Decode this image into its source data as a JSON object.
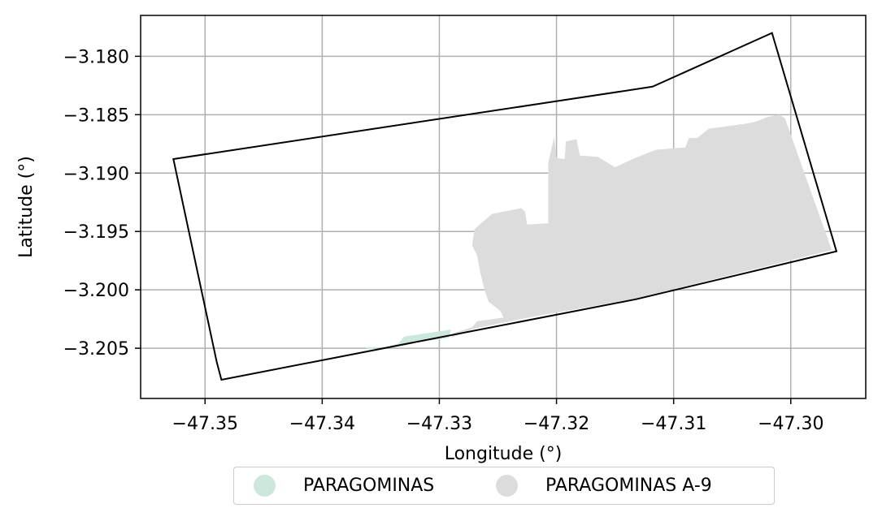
{
  "chart_data": {
    "type": "map",
    "xlabel": "Longitude (°)",
    "ylabel": "Latitude (°)",
    "xlim": [
      -47.3555,
      -47.2936
    ],
    "ylim": [
      -3.2093,
      -3.1765
    ],
    "xticks": [
      -47.35,
      -47.34,
      -47.33,
      -47.32,
      -47.31,
      -47.3
    ],
    "xtick_labels": [
      "−47.35",
      "−47.34",
      "−47.33",
      "−47.32",
      "−47.31",
      "−47.30"
    ],
    "yticks": [
      -3.18,
      -3.185,
      -3.19,
      -3.195,
      -3.2,
      -3.205
    ],
    "ytick_labels": [
      "−3.180",
      "−3.185",
      "−3.190",
      "−3.195",
      "−3.200",
      "−3.205"
    ],
    "grid": true,
    "legend_position": "bottom-center",
    "outline_color": "#000000",
    "layers": [
      {
        "name": "PARAGOMINAS",
        "color": "#cce8dc",
        "polygon": [
          [
            -47.3365,
            -3.2049
          ],
          [
            -47.3345,
            -3.2049
          ],
          [
            -47.3335,
            -3.2046
          ],
          [
            -47.333,
            -3.204
          ],
          [
            -47.329,
            -3.2034
          ],
          [
            -47.3292,
            -3.2041
          ],
          [
            -47.336,
            -3.2051
          ]
        ]
      },
      {
        "name": "PARAGOMINAS A-9",
        "color": "#dcdcdc",
        "polygon": [
          [
            -47.329,
            -3.2041
          ],
          [
            -47.327,
            -3.2033
          ],
          [
            -47.322,
            -3.2023
          ],
          [
            -47.3135,
            -3.2008
          ],
          [
            -47.2965,
            -3.1966
          ],
          [
            -47.3005,
            -3.1853
          ],
          [
            -47.301,
            -3.185
          ],
          [
            -47.302,
            -3.1852
          ],
          [
            -47.303,
            -3.1856
          ],
          [
            -47.304,
            -3.1858
          ],
          [
            -47.307,
            -3.1862
          ],
          [
            -47.308,
            -3.187
          ],
          [
            -47.3087,
            -3.187
          ],
          [
            -47.309,
            -3.1878
          ],
          [
            -47.3115,
            -3.188
          ],
          [
            -47.3135,
            -3.1888
          ],
          [
            -47.315,
            -3.1895
          ],
          [
            -47.3165,
            -3.1886
          ],
          [
            -47.318,
            -3.1885
          ],
          [
            -47.3183,
            -3.1871
          ],
          [
            -47.3192,
            -3.1873
          ],
          [
            -47.3193,
            -3.1888
          ],
          [
            -47.32,
            -3.1887
          ],
          [
            -47.3202,
            -3.1869
          ],
          [
            -47.3207,
            -3.1891
          ],
          [
            -47.3207,
            -3.1943
          ],
          [
            -47.3225,
            -3.1944
          ],
          [
            -47.3227,
            -3.1933
          ],
          [
            -47.323,
            -3.193
          ],
          [
            -47.3255,
            -3.1935
          ],
          [
            -47.327,
            -3.1948
          ],
          [
            -47.3272,
            -3.1962
          ],
          [
            -47.3268,
            -3.197
          ],
          [
            -47.3265,
            -3.1985
          ],
          [
            -47.3262,
            -3.1998
          ],
          [
            -47.3258,
            -3.201
          ],
          [
            -47.3248,
            -3.2018
          ],
          [
            -47.3245,
            -3.2024
          ],
          [
            -47.324,
            -3.2023
          ],
          [
            -47.3268,
            -3.2027
          ],
          [
            -47.3272,
            -3.2032
          ],
          [
            -47.3288,
            -3.2037
          ]
        ]
      }
    ],
    "boundary": [
      [
        -47.3527,
        -3.1888
      ],
      [
        -47.3118,
        -3.1826
      ],
      [
        -47.3016,
        -3.178
      ],
      [
        -47.2961,
        -3.1967
      ],
      [
        -47.3132,
        -3.2008
      ],
      [
        -47.3486,
        -3.2077
      ],
      [
        -47.349,
        -3.2062
      ]
    ]
  }
}
